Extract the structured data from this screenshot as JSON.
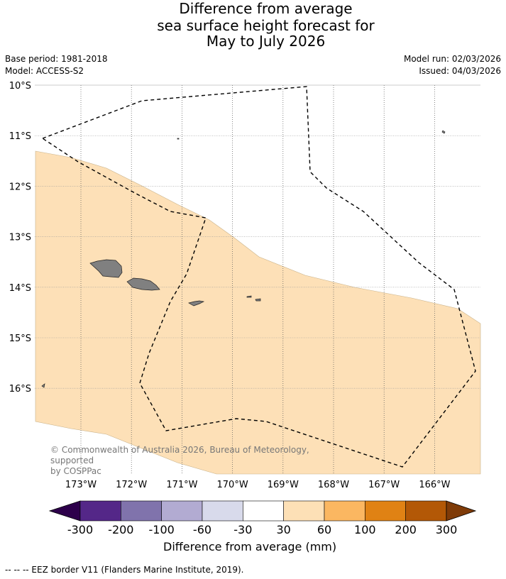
{
  "title": {
    "line1": "Difference from average",
    "line2": "sea surface height forecast for",
    "line3": "May to July 2026"
  },
  "meta": {
    "base_period": "Base period: 1981-2018",
    "model": "Model: ACCESS-S2",
    "model_run": "Model run: 02/03/2026",
    "issued": "Issued: 04/03/2026"
  },
  "map": {
    "lat_labels": [
      "10°S",
      "11°S",
      "12°S",
      "13°S",
      "14°S",
      "15°S",
      "16°S"
    ],
    "lon_labels": [
      "173°W",
      "172°W",
      "171°W",
      "170°W",
      "169°W",
      "168°W",
      "167°W",
      "166°W"
    ],
    "land_color": "#808080",
    "anomaly_band_category": "30 to 60",
    "anomaly_fill_color": "#fde0b7",
    "eez_line_style": "dashed"
  },
  "copyright": {
    "line1": "© Commonwealth of Australia 2026, Bureau of Meteorology, supported",
    "line2": "by COSPPac"
  },
  "colorbar": {
    "ticks": [
      "-300",
      "-200",
      "-100",
      "-60",
      "-30",
      "30",
      "60",
      "100",
      "200",
      "300"
    ],
    "colors": [
      "#2d004b",
      "#542788",
      "#8073ac",
      "#b2abd2",
      "#d8daeb",
      "#ffffff",
      "#fde0b6",
      "#fbb761",
      "#e08214",
      "#b35806",
      "#7f3b08"
    ],
    "label": "Difference from average (mm)"
  },
  "footnote": "--  --  -- EEZ border V11 (Flanders Marine Institute, 2019)."
}
